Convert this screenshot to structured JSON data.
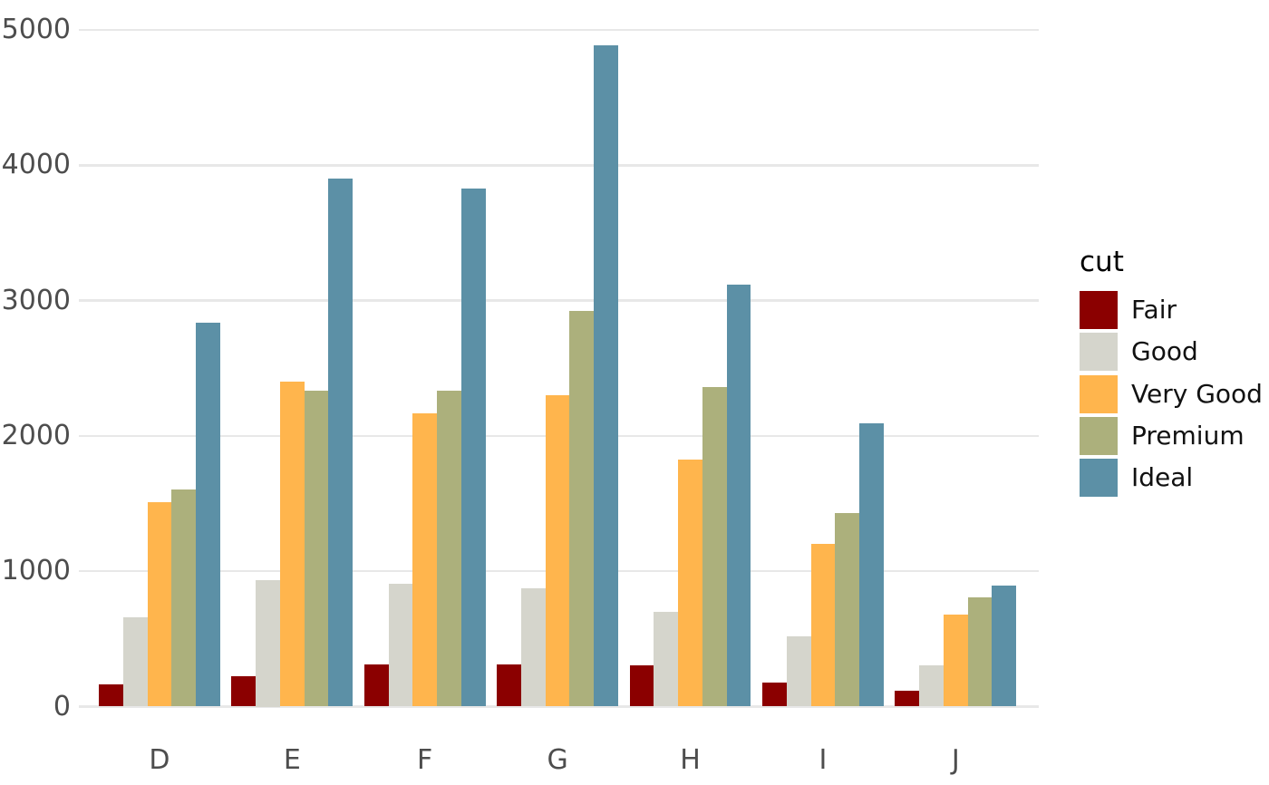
{
  "chart_data": {
    "type": "bar",
    "title": "",
    "xlabel": "",
    "ylabel": "",
    "categories": [
      "D",
      "E",
      "F",
      "G",
      "H",
      "I",
      "J"
    ],
    "series": [
      {
        "name": "Fair",
        "color": "#8B0000",
        "values": [
          163,
          224,
          312,
          314,
          303,
          175,
          119
        ]
      },
      {
        "name": "Good",
        "color": "#D5D5CC",
        "values": [
          662,
          933,
          909,
          871,
          702,
          522,
          307
        ]
      },
      {
        "name": "Very Good",
        "color": "#FFB54D",
        "values": [
          1513,
          2400,
          2164,
          2299,
          1824,
          1204,
          678
        ]
      },
      {
        "name": "Premium",
        "color": "#ACB07C",
        "values": [
          1603,
          2337,
          2331,
          2924,
          2360,
          1428,
          808
        ]
      },
      {
        "name": "Ideal",
        "color": "#5C90A6",
        "values": [
          2834,
          3903,
          3826,
          4884,
          3115,
          2093,
          896
        ]
      }
    ],
    "legend": {
      "title": "cut",
      "position": "right",
      "entries": [
        "Fair",
        "Good",
        "Very Good",
        "Premium",
        "Ideal"
      ]
    },
    "y_ticks": [
      0,
      1000,
      2000,
      3000,
      4000,
      5000
    ],
    "ylim": [
      0,
      5233
    ],
    "grid": "horizontal-major",
    "axis_text_color": "#4d4d4d"
  }
}
